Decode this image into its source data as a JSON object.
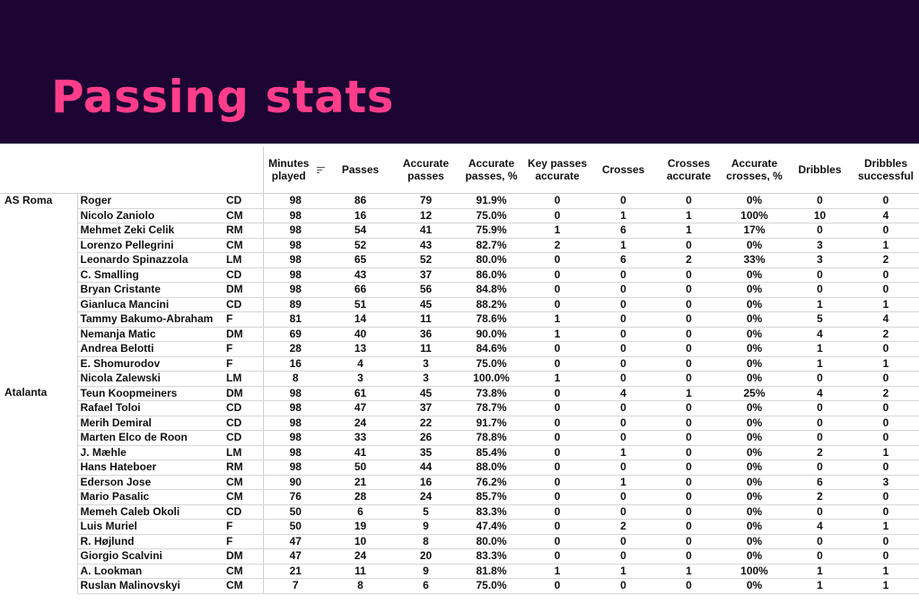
{
  "title": "Passing stats",
  "colors": {
    "banner_bg": "#1c0533",
    "title_pink": "#ff3d8b"
  },
  "headers": {
    "minutes": "Minutes played",
    "passes": "Passes",
    "accurate_passes": "Accurate passes",
    "accurate_passes_pct": "Accurate passes, %",
    "key_passes": "Key passes accurate",
    "crosses": "Crosses",
    "crosses_accurate": "Crosses accurate",
    "accurate_crosses_pct": "Accurate crosses, %",
    "dribbles": "Dribbles",
    "dribbles_successful": "Dribbles successful"
  },
  "sort_icon": "sort-descending-icon",
  "rows": [
    {
      "team": "AS Roma",
      "player": "Roger",
      "pos": "CD",
      "min": "98",
      "passes": "86",
      "acc": "79",
      "accpct": "91.9%",
      "key": "0",
      "crosses": "0",
      "cracc": "0",
      "crpct": "0%",
      "drib": "0",
      "dribs": "0"
    },
    {
      "team": "",
      "player": "Nicolo Zaniolo",
      "pos": "CM",
      "min": "98",
      "passes": "16",
      "acc": "12",
      "accpct": "75.0%",
      "key": "0",
      "crosses": "1",
      "cracc": "1",
      "crpct": "100%",
      "drib": "10",
      "dribs": "4"
    },
    {
      "team": "",
      "player": "Mehmet Zeki Celik",
      "pos": "RM",
      "min": "98",
      "passes": "54",
      "acc": "41",
      "accpct": "75.9%",
      "key": "1",
      "crosses": "6",
      "cracc": "1",
      "crpct": "17%",
      "drib": "0",
      "dribs": "0"
    },
    {
      "team": "",
      "player": "Lorenzo Pellegrini",
      "pos": "CM",
      "min": "98",
      "passes": "52",
      "acc": "43",
      "accpct": "82.7%",
      "key": "2",
      "crosses": "1",
      "cracc": "0",
      "crpct": "0%",
      "drib": "3",
      "dribs": "1"
    },
    {
      "team": "",
      "player": "Leonardo Spinazzola",
      "pos": "LM",
      "min": "98",
      "passes": "65",
      "acc": "52",
      "accpct": "80.0%",
      "key": "0",
      "crosses": "6",
      "cracc": "2",
      "crpct": "33%",
      "drib": "3",
      "dribs": "2"
    },
    {
      "team": "",
      "player": "C. Smalling",
      "pos": "CD",
      "min": "98",
      "passes": "43",
      "acc": "37",
      "accpct": "86.0%",
      "key": "0",
      "crosses": "0",
      "cracc": "0",
      "crpct": "0%",
      "drib": "0",
      "dribs": "0"
    },
    {
      "team": "",
      "player": "Bryan Cristante",
      "pos": "DM",
      "min": "98",
      "passes": "66",
      "acc": "56",
      "accpct": "84.8%",
      "key": "0",
      "crosses": "0",
      "cracc": "0",
      "crpct": "0%",
      "drib": "0",
      "dribs": "0"
    },
    {
      "team": "",
      "player": "Gianluca Mancini",
      "pos": "CD",
      "min": "89",
      "passes": "51",
      "acc": "45",
      "accpct": "88.2%",
      "key": "0",
      "crosses": "0",
      "cracc": "0",
      "crpct": "0%",
      "drib": "1",
      "dribs": "1"
    },
    {
      "team": "",
      "player": "Tammy Bakumo-Abraham",
      "pos": "F",
      "min": "81",
      "passes": "14",
      "acc": "11",
      "accpct": "78.6%",
      "key": "1",
      "crosses": "0",
      "cracc": "0",
      "crpct": "0%",
      "drib": "5",
      "dribs": "4"
    },
    {
      "team": "",
      "player": "Nemanja Matic",
      "pos": "DM",
      "min": "69",
      "passes": "40",
      "acc": "36",
      "accpct": "90.0%",
      "key": "1",
      "crosses": "0",
      "cracc": "0",
      "crpct": "0%",
      "drib": "4",
      "dribs": "2"
    },
    {
      "team": "",
      "player": "Andrea Belotti",
      "pos": "F",
      "min": "28",
      "passes": "13",
      "acc": "11",
      "accpct": "84.6%",
      "key": "0",
      "crosses": "0",
      "cracc": "0",
      "crpct": "0%",
      "drib": "1",
      "dribs": "0"
    },
    {
      "team": "",
      "player": "E. Shomurodov",
      "pos": "F",
      "min": "16",
      "passes": "4",
      "acc": "3",
      "accpct": "75.0%",
      "key": "0",
      "crosses": "0",
      "cracc": "0",
      "crpct": "0%",
      "drib": "1",
      "dribs": "1"
    },
    {
      "team": "",
      "player": "Nicola Zalewski",
      "pos": "LM",
      "min": "8",
      "passes": "3",
      "acc": "3",
      "accpct": "100.0%",
      "key": "1",
      "crosses": "0",
      "cracc": "0",
      "crpct": "0%",
      "drib": "0",
      "dribs": "0"
    },
    {
      "team": "Atalanta",
      "player": "Teun Koopmeiners",
      "pos": "DM",
      "min": "98",
      "passes": "61",
      "acc": "45",
      "accpct": "73.8%",
      "key": "0",
      "crosses": "4",
      "cracc": "1",
      "crpct": "25%",
      "drib": "4",
      "dribs": "2"
    },
    {
      "team": "",
      "player": "Rafael Toloi",
      "pos": "CD",
      "min": "98",
      "passes": "47",
      "acc": "37",
      "accpct": "78.7%",
      "key": "0",
      "crosses": "0",
      "cracc": "0",
      "crpct": "0%",
      "drib": "0",
      "dribs": "0"
    },
    {
      "team": "",
      "player": "Merih Demiral",
      "pos": "CD",
      "min": "98",
      "passes": "24",
      "acc": "22",
      "accpct": "91.7%",
      "key": "0",
      "crosses": "0",
      "cracc": "0",
      "crpct": "0%",
      "drib": "0",
      "dribs": "0"
    },
    {
      "team": "",
      "player": "Marten Elco de Roon",
      "pos": "CD",
      "min": "98",
      "passes": "33",
      "acc": "26",
      "accpct": "78.8%",
      "key": "0",
      "crosses": "0",
      "cracc": "0",
      "crpct": "0%",
      "drib": "0",
      "dribs": "0"
    },
    {
      "team": "",
      "player": "J. Mæhle",
      "pos": "LM",
      "min": "98",
      "passes": "41",
      "acc": "35",
      "accpct": "85.4%",
      "key": "0",
      "crosses": "1",
      "cracc": "0",
      "crpct": "0%",
      "drib": "2",
      "dribs": "1"
    },
    {
      "team": "",
      "player": "Hans Hateboer",
      "pos": "RM",
      "min": "98",
      "passes": "50",
      "acc": "44",
      "accpct": "88.0%",
      "key": "0",
      "crosses": "0",
      "cracc": "0",
      "crpct": "0%",
      "drib": "0",
      "dribs": "0"
    },
    {
      "team": "",
      "player": "Ederson Jose",
      "pos": "CM",
      "min": "90",
      "passes": "21",
      "acc": "16",
      "accpct": "76.2%",
      "key": "0",
      "crosses": "1",
      "cracc": "0",
      "crpct": "0%",
      "drib": "6",
      "dribs": "3"
    },
    {
      "team": "",
      "player": "Mario Pasalic",
      "pos": "CM",
      "min": "76",
      "passes": "28",
      "acc": "24",
      "accpct": "85.7%",
      "key": "0",
      "crosses": "0",
      "cracc": "0",
      "crpct": "0%",
      "drib": "2",
      "dribs": "0"
    },
    {
      "team": "",
      "player": "Memeh Caleb Okoli",
      "pos": "CD",
      "min": "50",
      "passes": "6",
      "acc": "5",
      "accpct": "83.3%",
      "key": "0",
      "crosses": "0",
      "cracc": "0",
      "crpct": "0%",
      "drib": "0",
      "dribs": "0"
    },
    {
      "team": "",
      "player": "Luis Muriel",
      "pos": "F",
      "min": "50",
      "passes": "19",
      "acc": "9",
      "accpct": "47.4%",
      "key": "0",
      "crosses": "2",
      "cracc": "0",
      "crpct": "0%",
      "drib": "4",
      "dribs": "1"
    },
    {
      "team": "",
      "player": "R. Højlund",
      "pos": "F",
      "min": "47",
      "passes": "10",
      "acc": "8",
      "accpct": "80.0%",
      "key": "0",
      "crosses": "0",
      "cracc": "0",
      "crpct": "0%",
      "drib": "0",
      "dribs": "0"
    },
    {
      "team": "",
      "player": "Giorgio Scalvini",
      "pos": "DM",
      "min": "47",
      "passes": "24",
      "acc": "20",
      "accpct": "83.3%",
      "key": "0",
      "crosses": "0",
      "cracc": "0",
      "crpct": "0%",
      "drib": "0",
      "dribs": "0"
    },
    {
      "team": "",
      "player": "A. Lookman",
      "pos": "CM",
      "min": "21",
      "passes": "11",
      "acc": "9",
      "accpct": "81.8%",
      "key": "1",
      "crosses": "1",
      "cracc": "1",
      "crpct": "100%",
      "drib": "1",
      "dribs": "1"
    },
    {
      "team": "",
      "player": "Ruslan Malinovskyi",
      "pos": "CM",
      "min": "7",
      "passes": "8",
      "acc": "6",
      "accpct": "75.0%",
      "key": "0",
      "crosses": "0",
      "cracc": "0",
      "crpct": "0%",
      "drib": "1",
      "dribs": "1"
    }
  ]
}
